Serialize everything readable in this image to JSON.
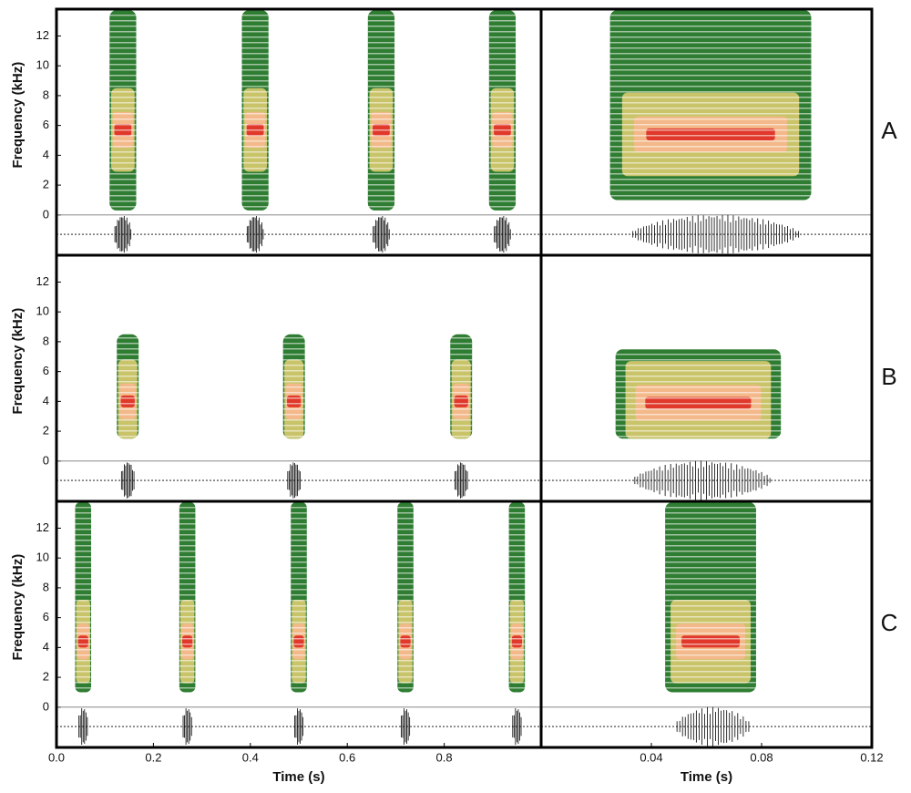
{
  "chart_data": {
    "type": "spectrogram",
    "y_axis": {
      "label": "Frequency (kHz)",
      "lim": [
        -2.7,
        13.8
      ],
      "ticks": [
        0,
        2,
        4,
        6,
        8,
        10,
        12
      ]
    },
    "left_x_axis": {
      "label": "Time (s)",
      "lim": [
        0,
        1.0
      ],
      "ticks": [
        {
          "value": 0,
          "label": "0.0"
        },
        0.2,
        0.4,
        0.6,
        0.8
      ]
    },
    "right_x_axis": {
      "label": "Time (s)",
      "lim": [
        0,
        0.12
      ],
      "ticks": [
        0.04,
        0.08,
        0.12
      ]
    },
    "rows": [
      {
        "label": "A",
        "call_times": [
          0.137,
          0.41,
          0.67,
          0.92
        ],
        "call_duration": 0.055,
        "freq_range": [
          0.3,
          13.8
        ],
        "peak_freq": 5.7,
        "detail_span": [
          0.025,
          0.098
        ],
        "detail_freq_range": [
          1,
          13.8
        ],
        "detail_peak_freq": 5.4
      },
      {
        "label": "B",
        "call_times": [
          0.147,
          0.49,
          0.835
        ],
        "call_duration": 0.045,
        "freq_range": [
          1.5,
          8.5
        ],
        "peak_freq": 4,
        "detail_span": [
          0.027,
          0.087
        ],
        "detail_freq_range": [
          1.5,
          7.5
        ],
        "detail_peak_freq": 3.9
      },
      {
        "label": "C",
        "call_times": [
          0.055,
          0.27,
          0.5,
          0.72,
          0.95
        ],
        "call_duration": 0.033,
        "freq_range": [
          1,
          13.8
        ],
        "peak_freq": 4.4,
        "detail_span": [
          0.045,
          0.078
        ],
        "detail_freq_range": [
          1,
          13.8
        ],
        "detail_peak_freq": 4.4
      }
    ]
  }
}
